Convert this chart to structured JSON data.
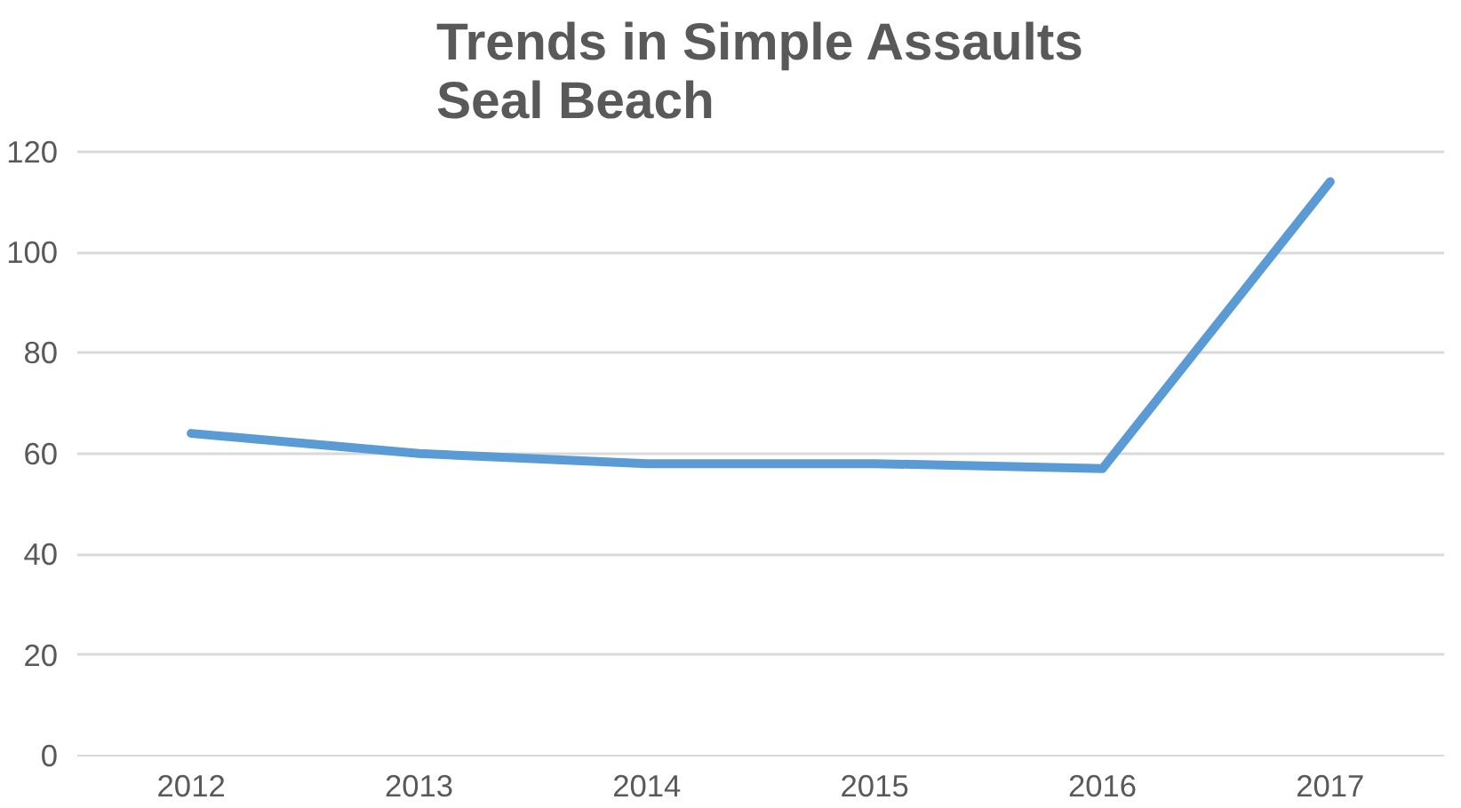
{
  "chart_data": {
    "type": "line",
    "title": "Trends in Simple Assaults\nSeal Beach",
    "categories": [
      "2012",
      "2013",
      "2014",
      "2015",
      "2016",
      "2017"
    ],
    "series": [
      {
        "color": "#5b9bd5",
        "values": [
          64,
          60,
          58,
          58,
          57,
          114
        ]
      }
    ],
    "ylim": [
      0,
      120
    ],
    "yticks": [
      0,
      20,
      40,
      60,
      80,
      100,
      120
    ],
    "grid": "y",
    "marker": "none",
    "line_style": "solid"
  }
}
